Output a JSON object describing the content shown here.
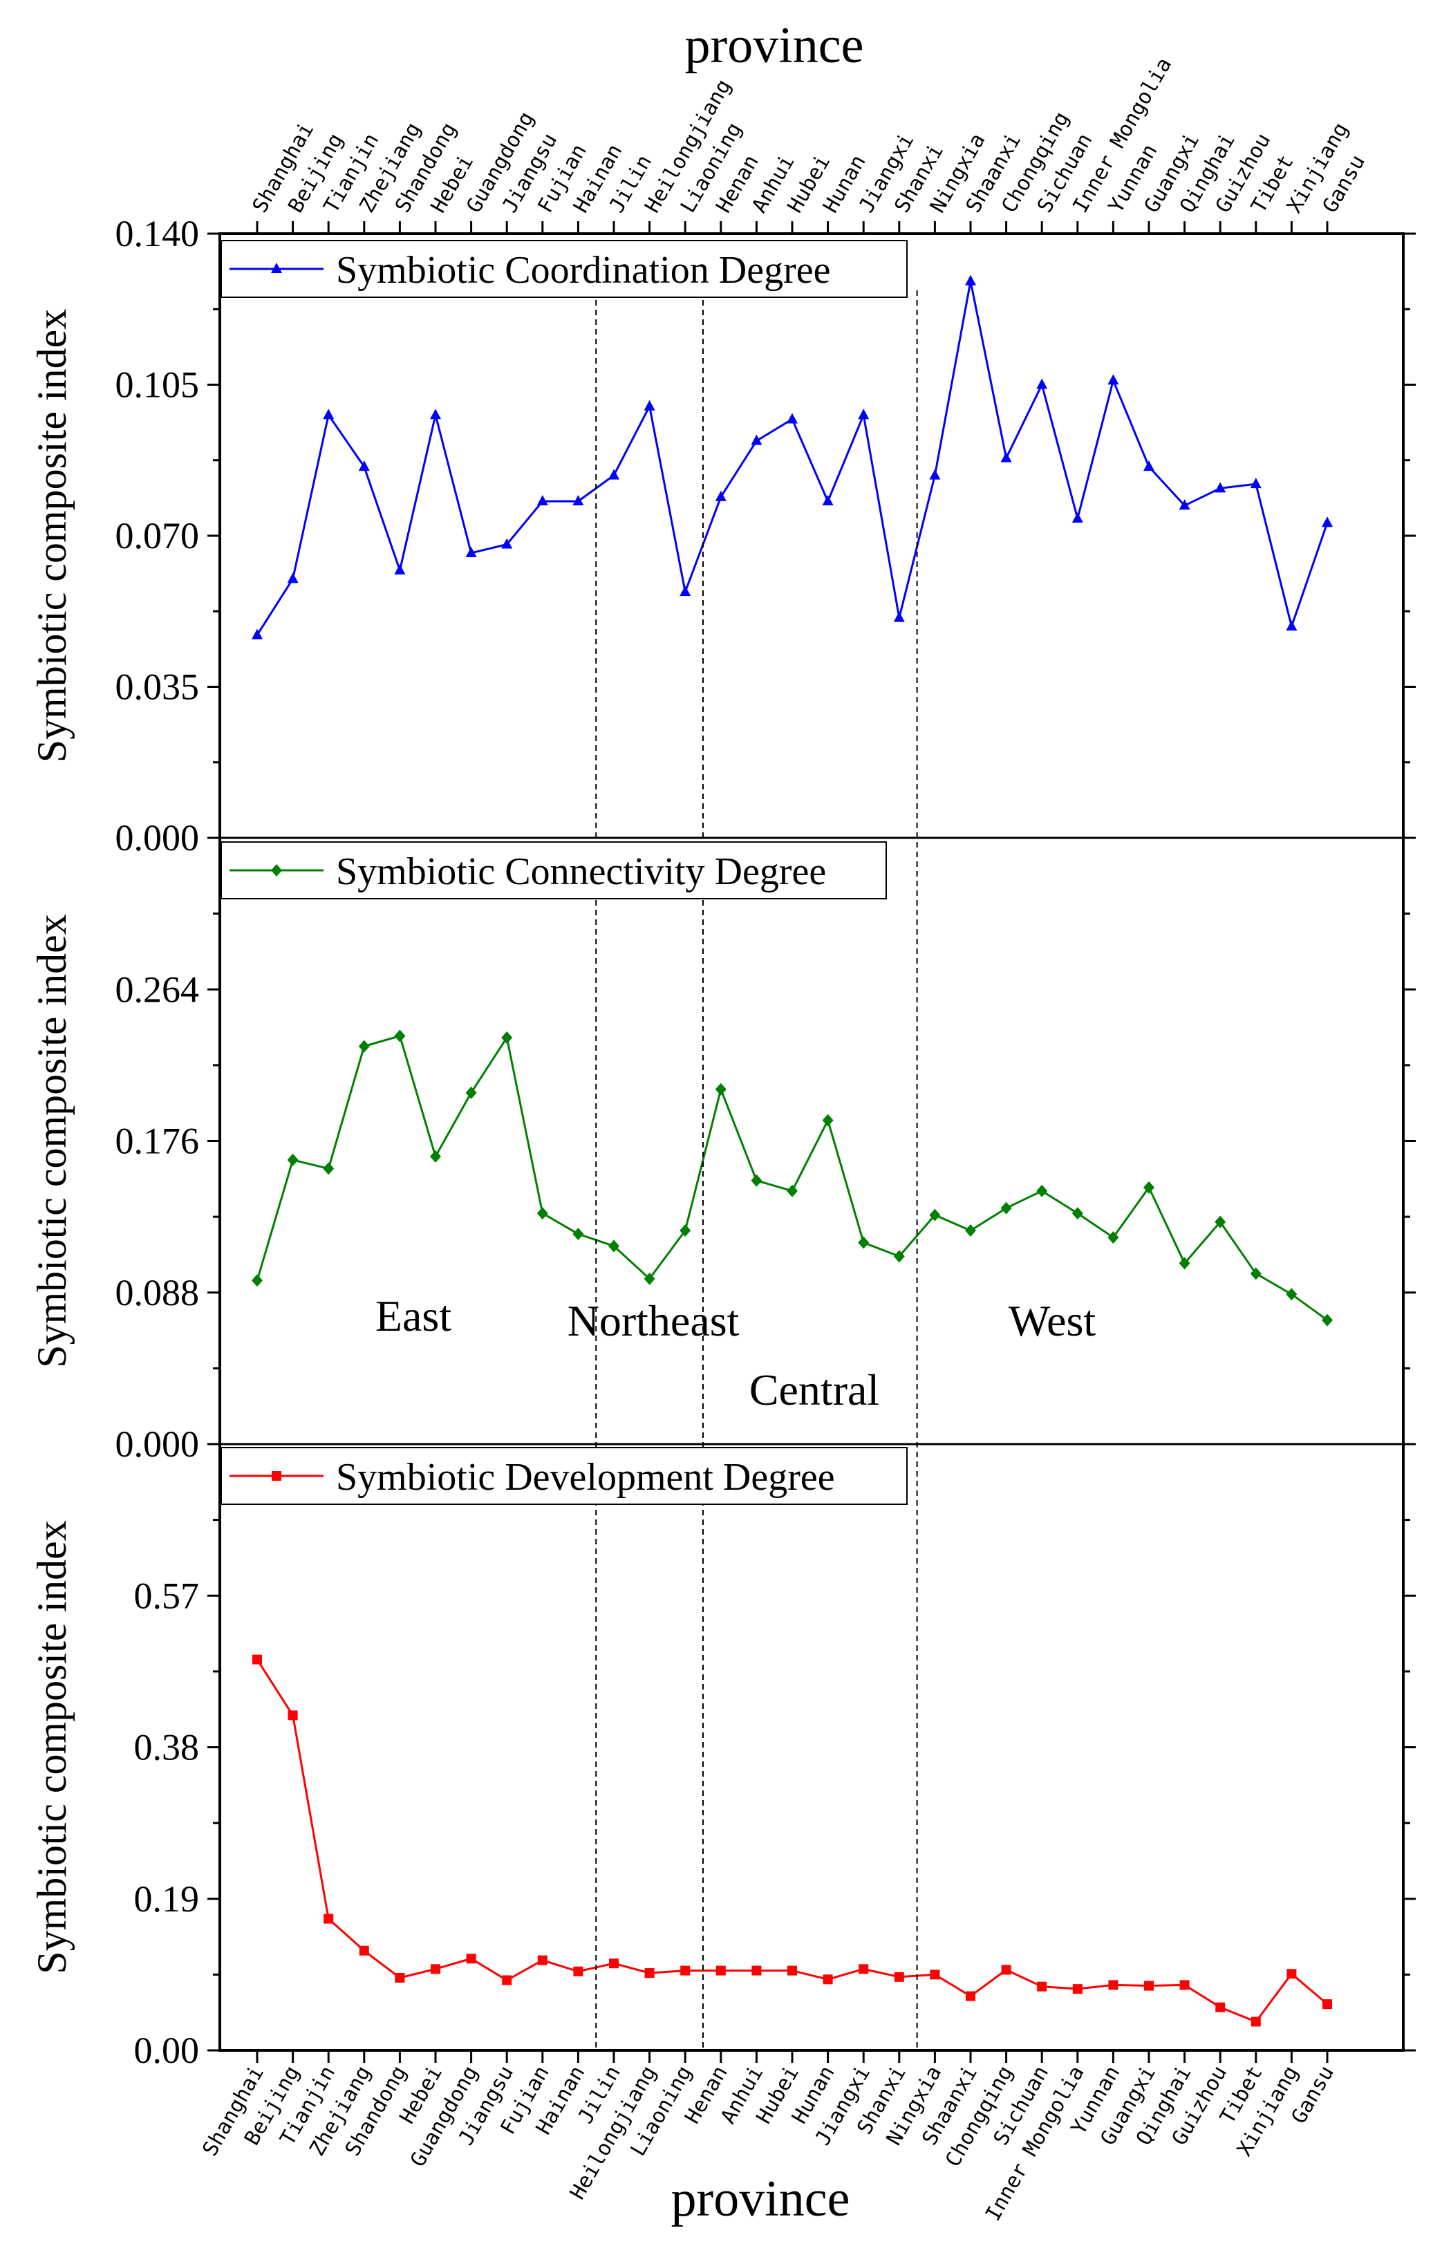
{
  "chart_data": {
    "type": "line",
    "title_top": "province",
    "xlabel": "province",
    "ylabel": "Symbiotic composite index",
    "categories": [
      "Shanghai",
      "Beijing",
      "Tianjin",
      "Zhejiang",
      "Shandong",
      "Hebei",
      "Guangdong",
      "Jiangsu",
      "Fujian",
      "Hainan",
      "Jilin",
      "Heilongjiang",
      "Liaoning",
      "Henan",
      "Anhui",
      "Hubei",
      "Hunan",
      "Jiangxi",
      "Shanxi",
      "Ningxia",
      "Shaanxi",
      "Chongqing",
      "Sichuan",
      "Inner Mongolia",
      "Yunnan",
      "Guangxi",
      "Qinghai",
      "Guizhou",
      "Tibet",
      "Xinjiang",
      "Gansu"
    ],
    "regions": [
      {
        "name": "East",
        "first": 0,
        "last": 9
      },
      {
        "name": "Northeast",
        "first": 10,
        "last": 12
      },
      {
        "name": "Central",
        "first": 13,
        "last": 18
      },
      {
        "name": "West",
        "first": 19,
        "last": 30
      }
    ],
    "panels": [
      {
        "name": "Symbiotic Coordination Degree",
        "color": "#0000ff",
        "marker": "triangle",
        "ylim": [
          0,
          0.14
        ],
        "yticks": [
          "0.000",
          "0.035",
          "0.070",
          "0.105",
          "0.140"
        ],
        "tick_values": [
          0,
          0.035,
          0.07,
          0.105,
          0.14
        ],
        "values": [
          0.047,
          0.06,
          0.098,
          0.086,
          0.062,
          0.098,
          0.066,
          0.068,
          0.078,
          0.078,
          0.084,
          0.1,
          0.057,
          0.079,
          0.092,
          0.097,
          0.078,
          0.098,
          0.051,
          0.084,
          0.129,
          0.088,
          0.105,
          0.074,
          0.106,
          0.086,
          0.077,
          0.081,
          0.082,
          0.049,
          0.073
        ]
      },
      {
        "name": "Symbiotic Connectivity Degree",
        "color": "#008000",
        "marker": "diamond",
        "ylim": [
          0,
          0.352
        ],
        "yticks": [
          "0.000",
          "0.088",
          "0.176",
          "0.264"
        ],
        "tick_values": [
          0,
          0.088,
          0.176,
          0.264
        ],
        "values": [
          0.095,
          0.165,
          0.16,
          0.231,
          0.237,
          0.167,
          0.204,
          0.236,
          0.134,
          0.122,
          0.115,
          0.096,
          0.124,
          0.206,
          0.153,
          0.147,
          0.188,
          0.117,
          0.109,
          0.133,
          0.124,
          0.137,
          0.147,
          0.134,
          0.12,
          0.149,
          0.105,
          0.129,
          0.099,
          0.087,
          0.072
        ]
      },
      {
        "name": "Symbiotic Development Degree",
        "color": "#ff0000",
        "marker": "square",
        "ylim": [
          0,
          0.76
        ],
        "yticks": [
          "0.00",
          "0.19",
          "0.38",
          "0.57"
        ],
        "tick_values": [
          0,
          0.19,
          0.38,
          0.57
        ],
        "values": [
          0.49,
          0.42,
          0.165,
          0.125,
          0.091,
          0.102,
          0.115,
          0.088,
          0.113,
          0.099,
          0.109,
          0.097,
          0.1,
          0.1,
          0.1,
          0.1,
          0.089,
          0.102,
          0.092,
          0.095,
          0.068,
          0.101,
          0.08,
          0.077,
          0.082,
          0.081,
          0.082,
          0.054,
          0.036,
          0.096,
          0.058
        ]
      }
    ]
  }
}
